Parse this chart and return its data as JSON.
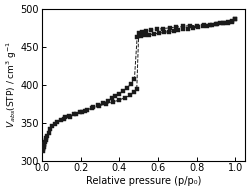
{
  "xlabel": "Relative pressure (p/p₀)",
  "xlim": [
    0.0,
    1.05
  ],
  "ylim": [
    300,
    500
  ],
  "yticks": [
    300,
    350,
    400,
    450,
    500
  ],
  "xticks": [
    0.0,
    0.2,
    0.4,
    0.6,
    0.8,
    1.0
  ],
  "adsorption_x": [
    0.003,
    0.005,
    0.007,
    0.009,
    0.011,
    0.013,
    0.016,
    0.019,
    0.023,
    0.028,
    0.034,
    0.042,
    0.053,
    0.065,
    0.08,
    0.098,
    0.118,
    0.14,
    0.165,
    0.195,
    0.225,
    0.26,
    0.295,
    0.33,
    0.365,
    0.4,
    0.43,
    0.455,
    0.475,
    0.49,
    0.5,
    0.515,
    0.54,
    0.565,
    0.595,
    0.625,
    0.66,
    0.695,
    0.73,
    0.765,
    0.8,
    0.835,
    0.87,
    0.905,
    0.935,
    0.96,
    0.98,
    0.998
  ],
  "adsorption_y": [
    317,
    313,
    315,
    318,
    320,
    322,
    325,
    327,
    330,
    333,
    337,
    341,
    345,
    348,
    351,
    354,
    357,
    359,
    361,
    364,
    366,
    369,
    372,
    375,
    377,
    380,
    383,
    386,
    390,
    394,
    468,
    470,
    471,
    472,
    473,
    474,
    475,
    476,
    477,
    478,
    478,
    479,
    479,
    480,
    481,
    482,
    483,
    486
  ],
  "desorption_x": [
    0.998,
    0.98,
    0.96,
    0.94,
    0.92,
    0.9,
    0.878,
    0.855,
    0.83,
    0.805,
    0.78,
    0.755,
    0.73,
    0.705,
    0.68,
    0.655,
    0.63,
    0.605,
    0.58,
    0.555,
    0.53,
    0.51,
    0.492,
    0.478,
    0.46,
    0.44,
    0.42,
    0.4,
    0.38,
    0.36,
    0.34,
    0.315,
    0.29,
    0.265,
    0.235,
    0.205,
    0.175,
    0.145,
    0.115
  ],
  "desorption_y": [
    486,
    484,
    483,
    482,
    481,
    480,
    479,
    478,
    477,
    476,
    475,
    474,
    473,
    472,
    471,
    470,
    469,
    468,
    467,
    466,
    465,
    464,
    463,
    408,
    401,
    396,
    392,
    388,
    385,
    382,
    379,
    376,
    373,
    370,
    367,
    364,
    361,
    358,
    355
  ],
  "marker": "s",
  "markersize": 3.5,
  "color": "#1a1a1a",
  "linewidth": 0.7,
  "linestyle": "--"
}
